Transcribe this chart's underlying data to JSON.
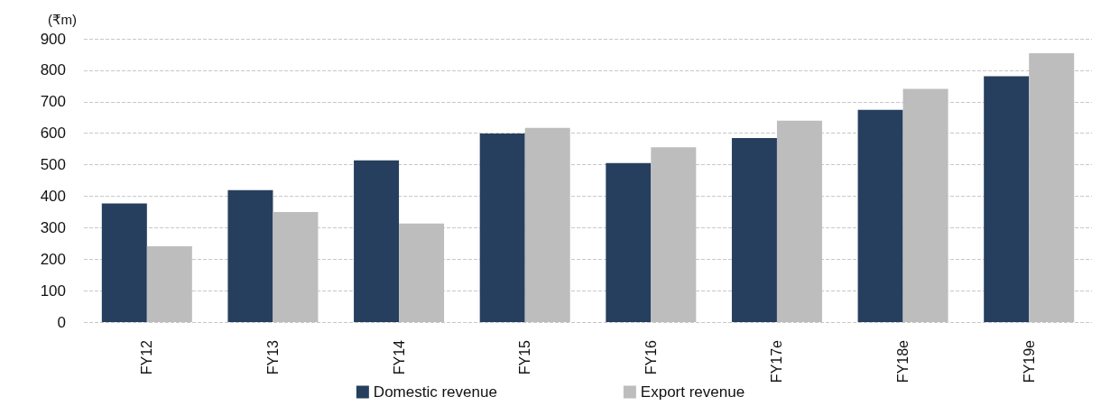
{
  "chart_data": {
    "type": "bar",
    "ylabel": "(₹m)",
    "categories": [
      "FY12",
      "FY13",
      "FY14",
      "FY15",
      "FY16",
      "FY17e",
      "FY18e",
      "FY19e"
    ],
    "series": [
      {
        "name": "Domestic revenue",
        "color": "#263f5f",
        "values": [
          377,
          419,
          514,
          599,
          505,
          585,
          674,
          781
        ]
      },
      {
        "name": "Export revenue",
        "color": "#bdbdbd",
        "values": [
          241,
          350,
          313,
          617,
          555,
          640,
          741,
          854
        ]
      }
    ],
    "ylim": [
      0,
      900
    ],
    "yticks": [
      0,
      100,
      200,
      300,
      400,
      500,
      600,
      700,
      800,
      900
    ],
    "grid": "y",
    "legend": "bottom"
  }
}
